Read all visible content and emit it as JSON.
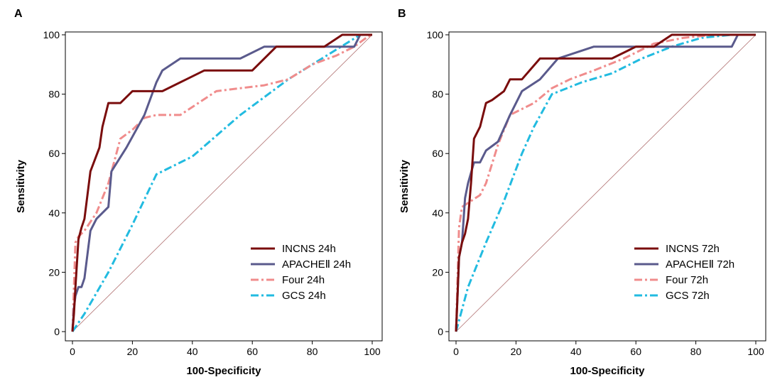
{
  "chart_data": [
    {
      "type": "line",
      "panel_label": "A",
      "xlabel": "100-Specificity",
      "ylabel": "Sensitivity",
      "xlim": [
        0,
        100
      ],
      "ylim": [
        0,
        100
      ],
      "xticks": [
        0,
        20,
        40,
        60,
        80,
        100
      ],
      "yticks": [
        0,
        20,
        40,
        60,
        80,
        100
      ],
      "legend_position": "bottom-right",
      "reference_line": {
        "x": [
          0,
          100
        ],
        "y": [
          0,
          100
        ],
        "color": "#b07070"
      },
      "series": [
        {
          "name": "INCNS 24h",
          "color": "#7a0d0d",
          "style": "solid",
          "x": [
            0,
            0.5,
            1,
            2,
            3,
            4,
            6,
            9,
            10,
            12,
            14,
            16,
            20,
            24,
            30,
            38,
            44,
            52,
            60,
            68,
            76,
            84,
            90,
            96,
            100
          ],
          "y": [
            0,
            6,
            15,
            31,
            35,
            38,
            54,
            62,
            69,
            77,
            77,
            77,
            81,
            81,
            81,
            85,
            88,
            88,
            88,
            96,
            96,
            96,
            100,
            100,
            100
          ]
        },
        {
          "name": "APACHEⅡ 24h",
          "color": "#5a5a8c",
          "style": "solid",
          "x": [
            0,
            0.5,
            1,
            2,
            3,
            4,
            5,
            6,
            8,
            12,
            13,
            18,
            24,
            28,
            30,
            36,
            44,
            56,
            64,
            76,
            88,
            94,
            96,
            100
          ],
          "y": [
            0,
            8,
            12,
            15,
            15,
            18,
            26,
            34,
            38,
            42,
            54,
            62,
            73,
            84,
            88,
            92,
            92,
            92,
            96,
            96,
            96,
            96,
            100,
            100
          ]
        },
        {
          "name": "Four 24h",
          "color": "#f08c8c",
          "style": "dashdot",
          "x": [
            0,
            1,
            2,
            4,
            8,
            12,
            16,
            20,
            24,
            28,
            36,
            42,
            48,
            56,
            64,
            72,
            80,
            88,
            94,
            98,
            100
          ],
          "y": [
            0,
            30,
            32,
            34,
            40,
            50,
            65,
            68,
            72,
            73,
            73,
            77,
            81,
            82,
            83,
            85,
            90,
            93,
            96,
            99,
            100
          ]
        },
        {
          "name": "GCS 24h",
          "color": "#22bbe0",
          "style": "dashdot",
          "x": [
            0,
            4,
            12,
            20,
            28,
            32,
            40,
            48,
            56,
            64,
            72,
            80,
            88,
            96,
            100
          ],
          "y": [
            0,
            6,
            20,
            36,
            53,
            55,
            59,
            66,
            73,
            79,
            85,
            90,
            95,
            100,
            100
          ]
        }
      ]
    },
    {
      "type": "line",
      "panel_label": "B",
      "xlabel": "100-Specificity",
      "ylabel": "Sensitivity",
      "xlim": [
        0,
        100
      ],
      "ylim": [
        0,
        100
      ],
      "xticks": [
        0,
        20,
        40,
        60,
        80,
        100
      ],
      "yticks": [
        0,
        20,
        40,
        60,
        80,
        100
      ],
      "legend_position": "bottom-right",
      "reference_line": {
        "x": [
          0,
          100
        ],
        "y": [
          0,
          100
        ],
        "color": "#b07070"
      },
      "series": [
        {
          "name": "INCNS 72h",
          "color": "#7a0d0d",
          "style": "solid",
          "x": [
            0,
            0.5,
            1,
            2,
            3,
            4,
            5,
            6,
            8,
            10,
            12,
            16,
            18,
            22,
            28,
            36,
            44,
            52,
            60,
            66,
            72,
            80,
            90,
            100
          ],
          "y": [
            0,
            12,
            25,
            30,
            33,
            38,
            50,
            65,
            69,
            77,
            78,
            81,
            85,
            85,
            92,
            92,
            92,
            92,
            96,
            96,
            100,
            100,
            100,
            100
          ]
        },
        {
          "name": "APACHEⅡ 72h",
          "color": "#5a5a8c",
          "style": "solid",
          "x": [
            0,
            0.5,
            1,
            2,
            3,
            4,
            6,
            8,
            10,
            14,
            18,
            22,
            28,
            34,
            40,
            46,
            56,
            64,
            80,
            92,
            94,
            100
          ],
          "y": [
            0,
            12,
            25,
            30,
            45,
            50,
            57,
            57,
            61,
            64,
            73,
            81,
            85,
            92,
            94,
            96,
            96,
            96,
            96,
            96,
            100,
            100
          ]
        },
        {
          "name": "Four 72h",
          "color": "#f08c8c",
          "style": "dashdot",
          "x": [
            0,
            1,
            2,
            5,
            8,
            10,
            14,
            18,
            22,
            26,
            32,
            38,
            46,
            56,
            66,
            76,
            86,
            94,
            100
          ],
          "y": [
            0,
            35,
            42,
            44,
            46,
            50,
            63,
            73,
            75,
            77,
            82,
            85,
            88,
            92,
            97,
            99,
            100,
            100,
            100
          ]
        },
        {
          "name": "GCS 72h",
          "color": "#22bbe0",
          "style": "dashdot",
          "x": [
            0,
            4,
            10,
            16,
            22,
            26,
            32,
            42,
            52,
            62,
            72,
            82,
            92,
            100
          ],
          "y": [
            0,
            15,
            30,
            44,
            60,
            69,
            80,
            84,
            87,
            92,
            96,
            99,
            100,
            100
          ]
        }
      ]
    }
  ]
}
